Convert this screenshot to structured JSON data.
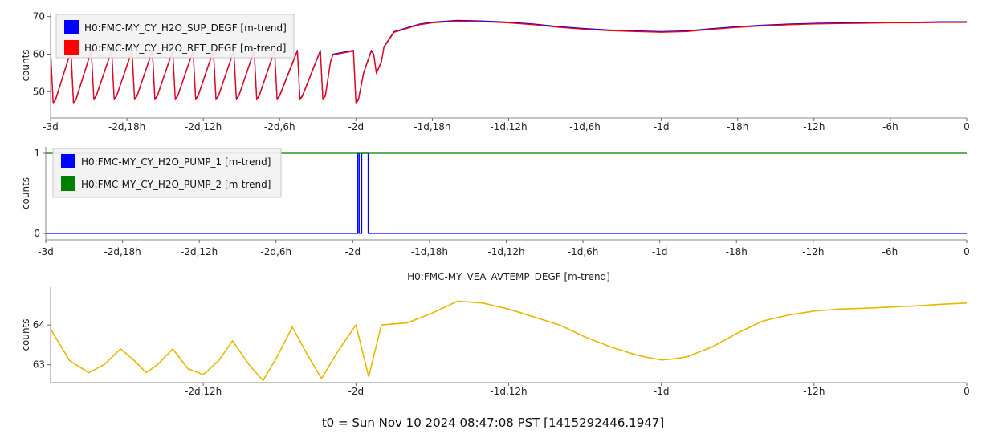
{
  "footer": "t0 = Sun Nov 10 2024 08:47:08 PST [1415292446.1947]",
  "chart_data": [
    {
      "type": "line",
      "title": "",
      "ylabel": "counts",
      "xlabel": "",
      "x_unit": "hours relative to t0",
      "xlim": [
        -72,
        0
      ],
      "ylim": [
        43,
        71
      ],
      "yticks": [
        50,
        60,
        70
      ],
      "xticks": [
        {
          "x": -72,
          "label": "-3d"
        },
        {
          "x": -66,
          "label": "-2d,18h"
        },
        {
          "x": -60,
          "label": "-2d,12h"
        },
        {
          "x": -54,
          "label": "-2d,6h"
        },
        {
          "x": -48,
          "label": "-2d"
        },
        {
          "x": -42,
          "label": "-1d,18h"
        },
        {
          "x": -36,
          "label": "-1d,12h"
        },
        {
          "x": -30,
          "label": "-1d,6h"
        },
        {
          "x": -24,
          "label": "-1d"
        },
        {
          "x": -18,
          "label": "-18h"
        },
        {
          "x": -12,
          "label": "-12h"
        },
        {
          "x": -6,
          "label": "-6h"
        },
        {
          "x": 0,
          "label": "0"
        }
      ],
      "legend_position": "top-left",
      "series": [
        {
          "name": "H0:FMC-MY_CY_H2O_SUP_DEGF [m-trend]",
          "color": "#0000ff"
        },
        {
          "name": "H0:FMC-MY_CY_H2O_RET_DEGF [m-trend]",
          "color": "#ff0000"
        }
      ],
      "x": [
        -72,
        -71.8,
        -71.6,
        -70.4,
        -70.2,
        -70,
        -68.8,
        -68.6,
        -68.4,
        -67.2,
        -67,
        -66.8,
        -65.6,
        -65.4,
        -65.2,
        -64,
        -63.8,
        -63.6,
        -62.4,
        -62.2,
        -62,
        -60.8,
        -60.6,
        -60.4,
        -59.2,
        -59,
        -58.8,
        -57.6,
        -57.4,
        -57.2,
        -56,
        -55.8,
        -55.6,
        -54.4,
        -54.2,
        -54,
        -52.6,
        -52.4,
        -52.2,
        -50.8,
        -50.6,
        -50.4,
        -50,
        -49.8,
        -48.2,
        -48,
        -47.8,
        -47.4,
        -47.2,
        -46.8,
        -46.6,
        -46.4,
        -46,
        -45.8,
        -45,
        -44,
        -43,
        -42,
        -40,
        -38,
        -36,
        -34,
        -32,
        -30,
        -28,
        -26,
        -24,
        -22,
        -20,
        -18,
        -16,
        -14,
        -12,
        -10,
        -8,
        -6,
        -4,
        -2,
        0
      ],
      "y": [
        61,
        47,
        48,
        61,
        47,
        48,
        61,
        48,
        49,
        61,
        48,
        49,
        61,
        48,
        49,
        61,
        48,
        49,
        61,
        48,
        49,
        61,
        48,
        49,
        61,
        48,
        49,
        61,
        48,
        49,
        61,
        48,
        49,
        61,
        48,
        49,
        61,
        48,
        49,
        61,
        48,
        49,
        58,
        60,
        61,
        47,
        48,
        55,
        57,
        61,
        60,
        55,
        58,
        62,
        66,
        67,
        68,
        68.5,
        69,
        68.8,
        68.5,
        68,
        67.3,
        66.8,
        66.4,
        66.2,
        66,
        66.2,
        66.8,
        67.3,
        67.7,
        68,
        68.2,
        68.3,
        68.4,
        68.5,
        68.5,
        68.6,
        68.6
      ]
    },
    {
      "type": "line",
      "title": "",
      "ylabel": "counts",
      "xlabel": "",
      "x_unit": "hours relative to t0",
      "xlim": [
        -72,
        0
      ],
      "ylim": [
        -0.08,
        1.08
      ],
      "yticks": [
        0,
        1
      ],
      "xticks": [
        {
          "x": -72,
          "label": "-3d"
        },
        {
          "x": -66,
          "label": "-2d,18h"
        },
        {
          "x": -60,
          "label": "-2d,12h"
        },
        {
          "x": -54,
          "label": "-2d,6h"
        },
        {
          "x": -48,
          "label": "-2d"
        },
        {
          "x": -42,
          "label": "-1d,18h"
        },
        {
          "x": -36,
          "label": "-1d,12h"
        },
        {
          "x": -30,
          "label": "-1d,6h"
        },
        {
          "x": -24,
          "label": "-1d"
        },
        {
          "x": -18,
          "label": "-18h"
        },
        {
          "x": -12,
          "label": "-12h"
        },
        {
          "x": -6,
          "label": "-6h"
        },
        {
          "x": 0,
          "label": "0"
        }
      ],
      "legend_position": "top-left",
      "series": [
        {
          "name": "H0:FMC-MY_CY_H2O_PUMP_1 [m-trend]",
          "color": "#0000ff",
          "x": [
            -72,
            -47.6,
            -47.6,
            -47.5,
            -47.5,
            -47.3,
            -47.3,
            -46.8,
            -46.8,
            0
          ],
          "y": [
            0,
            0,
            1,
            1,
            0,
            0,
            1,
            1,
            0,
            0
          ]
        },
        {
          "name": "H0:FMC-MY_CY_H2O_PUMP_2 [m-trend]",
          "color": "#008000",
          "x": [
            -72,
            0
          ],
          "y": [
            1,
            1
          ]
        }
      ]
    },
    {
      "type": "line",
      "title": "H0:FMC-MY_VEA_AVTEMP_DEGF [m-trend]",
      "ylabel": "counts",
      "xlabel": "",
      "x_unit": "hours relative to t0",
      "xlim": [
        -72,
        0
      ],
      "ylim": [
        62.55,
        64.95
      ],
      "yticks": [
        63,
        64
      ],
      "xticks": [
        {
          "x": -60,
          "label": "-2d,12h"
        },
        {
          "x": -48,
          "label": "-2d"
        },
        {
          "x": -36,
          "label": "-1d,12h"
        },
        {
          "x": -24,
          "label": "-1d"
        },
        {
          "x": -12,
          "label": "-12h"
        },
        {
          "x": 0,
          "label": "0"
        }
      ],
      "series": [
        {
          "name": "",
          "color": "#e6b800",
          "x": [
            -72,
            -70.5,
            -69,
            -67.8,
            -66.5,
            -65.4,
            -64.5,
            -63.6,
            -62.4,
            -61.2,
            -60,
            -58.8,
            -57.7,
            -56.4,
            -55.3,
            -54.2,
            -53,
            -51.9,
            -50.7,
            -49.5,
            -48,
            -47,
            -46,
            -44,
            -42,
            -40,
            -38,
            -36,
            -34,
            -32,
            -30,
            -28,
            -26,
            -25,
            -24,
            -23,
            -22,
            -20,
            -18,
            -16,
            -14,
            -12,
            -10,
            -8,
            -6,
            -4,
            -2,
            0
          ],
          "y": [
            63.9,
            63.1,
            62.8,
            63.0,
            63.4,
            63.1,
            62.8,
            63.0,
            63.4,
            62.9,
            62.75,
            63.1,
            63.6,
            63.0,
            62.6,
            63.2,
            63.95,
            63.3,
            62.65,
            63.3,
            64.0,
            62.7,
            64.0,
            64.05,
            64.3,
            64.6,
            64.55,
            64.4,
            64.2,
            64.0,
            63.7,
            63.45,
            63.25,
            63.18,
            63.12,
            63.15,
            63.2,
            63.45,
            63.8,
            64.1,
            64.25,
            64.35,
            64.4,
            64.42,
            64.45,
            64.48,
            64.52,
            64.55
          ]
        }
      ]
    }
  ]
}
